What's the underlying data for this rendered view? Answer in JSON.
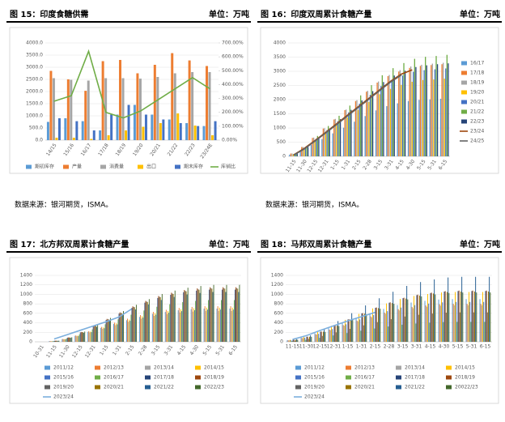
{
  "chart_data": [
    {
      "type": "bar",
      "title": "图 15：印度食糖供需",
      "unit": "单位：万吨",
      "source": "数据来源：银河期货，ISMA。",
      "categories": [
        "14/15",
        "15/16",
        "16/17",
        "17/18",
        "18/19",
        "19/20",
        "20/21",
        "21/22",
        "22/23",
        "23/24E"
      ],
      "ylim": [
        0,
        4000
      ],
      "yticks": [
        {
          "value": 0,
          "label": "0.0"
        },
        {
          "value": 500,
          "label": "500.0"
        },
        {
          "value": 1000,
          "label": "1000.0"
        },
        {
          "value": 1500,
          "label": "1500.0"
        },
        {
          "value": 2000,
          "label": "2000.0"
        },
        {
          "value": 2500,
          "label": "2500.0"
        },
        {
          "value": 3000,
          "label": "3000.0"
        },
        {
          "value": 3500,
          "label": "3500.0"
        },
        {
          "value": 4000,
          "label": "4000.0"
        }
      ],
      "y2lim": [
        0,
        700
      ],
      "y2ticks": [
        {
          "value": 0,
          "label": "0.00%"
        },
        {
          "value": 100,
          "label": "100.00%"
        },
        {
          "value": 200,
          "label": "200.00%"
        },
        {
          "value": 300,
          "label": "300.00%"
        },
        {
          "value": 400,
          "label": "400.00%"
        },
        {
          "value": 500,
          "label": "500.00%"
        },
        {
          "value": 600,
          "label": "600.00%"
        },
        {
          "value": 700,
          "label": "700.00%"
        }
      ],
      "series": [
        {
          "name": "期初库存",
          "color": "#5b9bd5",
          "values": [
            750,
            900,
            780,
            400,
            1050,
            1450,
            1050,
            850,
            700,
            580
          ]
        },
        {
          "name": "产量",
          "color": "#ed7d31",
          "values": [
            2850,
            2500,
            2030,
            3250,
            3300,
            2750,
            3100,
            3580,
            3280,
            3050
          ]
        },
        {
          "name": "消费量",
          "color": "#a5a5a5",
          "values": [
            2550,
            2480,
            2450,
            2550,
            2550,
            2530,
            2600,
            2750,
            2800,
            2800
          ]
        },
        {
          "name": "出口",
          "color": "#ffc000",
          "values": [
            100,
            100,
            50,
            200,
            400,
            550,
            700,
            1100,
            600,
            200
          ]
        },
        {
          "name": "期末库存",
          "color": "#4472c4",
          "values": [
            900,
            780,
            400,
            1050,
            1450,
            1050,
            850,
            700,
            580,
            780
          ]
        },
        {
          "name": "库销比",
          "color": "#70ad47",
          "type": "line",
          "axis": "y2",
          "values": [
            280,
            320,
            640,
            200,
            160,
            210,
            290,
            370,
            450,
            370
          ]
        }
      ]
    },
    {
      "type": "bar",
      "title": "图 16：印度双周累计食糖产量",
      "unit": "单位：万吨",
      "source": "数据来源：银河期货，ISMA。",
      "categories": [
        "11-15",
        "11-30",
        "12-15",
        "12-31",
        "1-15",
        "1-31",
        "2-15",
        "2-28",
        "3-15",
        "3-31",
        "4-15",
        "4-30",
        "5-15",
        "5-31",
        "6-15"
      ],
      "ylim": [
        0,
        4000
      ],
      "yticks": [
        0,
        500,
        1000,
        1500,
        2000,
        2500,
        3000,
        3500,
        4000
      ],
      "series": [
        {
          "name": "16/17",
          "color": "#5b9bd5",
          "values": [
            60,
            200,
            400,
            610,
            810,
            1010,
            1220,
            1420,
            1620,
            1770,
            1870,
            1950,
            1990,
            2010,
            2030
          ]
        },
        {
          "name": "17/18",
          "color": "#ed7d31",
          "values": [
            100,
            330,
            650,
            980,
            1300,
            1630,
            1950,
            2280,
            2600,
            2830,
            2990,
            3120,
            3190,
            3220,
            3250
          ]
        },
        {
          "name": "18/19",
          "color": "#a5a5a5",
          "values": [
            100,
            330,
            660,
            990,
            1320,
            1650,
            1980,
            2310,
            2640,
            2870,
            3040,
            3170,
            3230,
            3270,
            3300
          ]
        },
        {
          "name": "19/20",
          "color": "#ffc000",
          "values": [
            80,
            270,
            550,
            820,
            1100,
            1370,
            1640,
            1920,
            2190,
            2380,
            2520,
            2630,
            2690,
            2710,
            2740
          ]
        },
        {
          "name": "20/21",
          "color": "#4472c4",
          "values": [
            90,
            310,
            620,
            930,
            1240,
            1550,
            1860,
            2170,
            2480,
            2700,
            2850,
            2980,
            3040,
            3070,
            3100
          ]
        },
        {
          "name": "21/22",
          "color": "#70ad47",
          "values": [
            110,
            360,
            720,
            1070,
            1430,
            1790,
            2150,
            2510,
            2860,
            3110,
            3290,
            3440,
            3510,
            3540,
            3580
          ]
        },
        {
          "name": "22/23",
          "color": "#264478",
          "values": [
            100,
            330,
            660,
            980,
            1310,
            1640,
            1970,
            2300,
            2620,
            2850,
            3020,
            3150,
            3210,
            3250,
            3280
          ]
        },
        {
          "name": "23/24",
          "color": "#9e480e",
          "type": "line",
          "values": [
            50,
            280,
            560,
            850,
            1150,
            1450,
            1750,
            2050,
            2350,
            2650,
            2900,
            3050,
            null,
            null,
            null
          ]
        },
        {
          "name": "24/25",
          "color": "#636363",
          "type": "line",
          "values": [
            40,
            260,
            540,
            830,
            1120,
            1420,
            1720,
            2020,
            2320,
            2620,
            2870,
            null,
            null,
            null,
            null
          ]
        }
      ]
    },
    {
      "type": "bar",
      "title": "图 17：北方邦双周累计食糖产量",
      "unit": "单位：万吨",
      "categories": [
        "10-31",
        "11-15",
        "11-30",
        "12-15",
        "12-31",
        "1-15",
        "1-31",
        "2-15",
        "2-28",
        "3-15",
        "3-31",
        "4-15",
        "4-30",
        "5-15",
        "5-31",
        "6-15"
      ],
      "ylim": [
        0,
        1400
      ],
      "yticks": [
        0,
        200,
        400,
        600,
        800,
        1000,
        1200,
        1400
      ],
      "series": [
        {
          "name": "2011/12",
          "color": "#5b9bd5",
          "values": [
            0,
            14,
            56,
            126,
            210,
            294,
            378,
            455,
            525,
            588,
            630,
            665,
            686,
            700,
            700,
            700
          ]
        },
        {
          "name": "2012/13",
          "color": "#ed7d31",
          "values": [
            0,
            15,
            60,
            135,
            225,
            315,
            405,
            488,
            563,
            630,
            675,
            713,
            735,
            750,
            750,
            750
          ]
        },
        {
          "name": "2013/14",
          "color": "#a5a5a5",
          "values": [
            0,
            13,
            52,
            117,
            195,
            273,
            351,
            423,
            488,
            546,
            585,
            618,
            637,
            650,
            650,
            650
          ]
        },
        {
          "name": "2014/15",
          "color": "#ffc000",
          "values": [
            0,
            14,
            58,
            130,
            216,
            302,
            389,
            468,
            540,
            605,
            648,
            684,
            706,
            720,
            720,
            720
          ]
        },
        {
          "name": "2015/16",
          "color": "#4472c4",
          "values": [
            0,
            14,
            54,
            122,
            204,
            286,
            367,
            442,
            510,
            571,
            612,
            646,
            666,
            680,
            680,
            680
          ]
        },
        {
          "name": "2016/17",
          "color": "#70ad47",
          "values": [
            0,
            18,
            70,
            158,
            264,
            370,
            475,
            572,
            660,
            739,
            792,
            836,
            862,
            880,
            880,
            880
          ]
        },
        {
          "name": "2017/18",
          "color": "#264478",
          "values": [
            0,
            22,
            88,
            198,
            330,
            462,
            594,
            715,
            825,
            924,
            990,
            1045,
            1078,
            1100,
            1100,
            1100
          ]
        },
        {
          "name": "2018/19",
          "color": "#9e480e",
          "values": [
            0,
            23,
            92,
            207,
            345,
            483,
            621,
            748,
            863,
            966,
            1035,
            1093,
            1127,
            1150,
            1150,
            1150
          ]
        },
        {
          "name": "2019/20",
          "color": "#636363",
          "values": [
            0,
            23,
            90,
            203,
            339,
            475,
            610,
            735,
            848,
            949,
            1017,
            1074,
            1107,
            1130,
            1130,
            1130
          ]
        },
        {
          "name": "2020/21",
          "color": "#997300",
          "values": [
            0,
            22,
            90,
            202,
            336,
            470,
            605,
            728,
            840,
            941,
            1008,
            1064,
            1098,
            1120,
            1120,
            1120
          ]
        },
        {
          "name": "2021/22",
          "color": "#255e91",
          "values": [
            0,
            21,
            84,
            189,
            315,
            441,
            567,
            683,
            788,
            882,
            945,
            998,
            1029,
            1050,
            1050,
            1050
          ]
        },
        {
          "name": "2022/23",
          "color": "#43682b",
          "values": [
            0,
            24,
            96,
            216,
            360,
            504,
            648,
            780,
            900,
            1008,
            1080,
            1140,
            1176,
            1200,
            1200,
            1200
          ]
        },
        {
          "name": "2023/24",
          "color": "#7cafdd",
          "type": "line",
          "values": [
            null,
            60,
            150,
            240,
            330,
            420,
            520,
            690,
            null,
            null,
            null,
            null,
            null,
            null,
            null,
            null
          ]
        }
      ]
    },
    {
      "type": "bar",
      "title": "图 18：马邦双周累计食糖产量",
      "unit": "单位：万吨",
      "categories": [
        "11-15",
        "11-30",
        "12-15",
        "12-31",
        "1-15",
        "1-31",
        "2-15",
        "2-28",
        "3-15",
        "3-31",
        "4-15",
        "4-30",
        "5-15",
        "5-31",
        "6-15"
      ],
      "ylim": [
        0,
        1400
      ],
      "yticks": [
        0,
        200,
        400,
        600,
        800,
        1000,
        1200,
        1400
      ],
      "series": [
        {
          "name": "2011/12",
          "color": "#5b9bd5",
          "values": [
            36,
            90,
            180,
            288,
            396,
            504,
            603,
            693,
            774,
            828,
            864,
            891,
            900,
            900,
            900
          ]
        },
        {
          "name": "2012/13",
          "color": "#ed7d31",
          "values": [
            32,
            80,
            160,
            256,
            352,
            448,
            536,
            616,
            688,
            736,
            768,
            792,
            800,
            800,
            800
          ]
        },
        {
          "name": "2013/14",
          "color": "#a5a5a5",
          "values": [
            31,
            77,
            154,
            246,
            339,
            431,
            516,
            593,
            662,
            708,
            739,
            762,
            770,
            770,
            770
          ]
        },
        {
          "name": "2014/15",
          "color": "#ffc000",
          "values": [
            42,
            105,
            210,
            336,
            462,
            588,
            704,
            809,
            903,
            966,
            1008,
            1040,
            1050,
            1050,
            1050
          ]
        },
        {
          "name": "2015/16",
          "color": "#4472c4",
          "values": [
            34,
            84,
            168,
            269,
            370,
            470,
            563,
            647,
            722,
            773,
            806,
            832,
            840,
            840,
            840
          ]
        },
        {
          "name": "2016/17",
          "color": "#70ad47",
          "values": [
            17,
            42,
            84,
            134,
            185,
            235,
            281,
            323,
            361,
            386,
            403,
            416,
            420,
            420,
            420
          ]
        },
        {
          "name": "2017/18",
          "color": "#264478",
          "values": [
            43,
            107,
            214,
            342,
            471,
            599,
            717,
            824,
            920,
            984,
            1027,
            1059,
            1070,
            1070,
            1070
          ]
        },
        {
          "name": "2018/19",
          "color": "#9e480e",
          "values": [
            43,
            108,
            216,
            346,
            475,
            605,
            724,
            832,
            929,
            994,
            1037,
            1069,
            1080,
            1080,
            1080
          ]
        },
        {
          "name": "2019/20",
          "color": "#636363",
          "values": [
            25,
            62,
            124,
            198,
            273,
            347,
            415,
            477,
            533,
            570,
            595,
            614,
            620,
            620,
            620
          ]
        },
        {
          "name": "2020/21",
          "color": "#997300",
          "values": [
            42,
            106,
            212,
            339,
            466,
            594,
            710,
            816,
            912,
            975,
            1018,
            1049,
            1060,
            1060,
            1060
          ]
        },
        {
          "name": "2021/22",
          "color": "#255e91",
          "values": [
            55,
            137,
            274,
            438,
            603,
            767,
            918,
            1055,
            1178,
            1260,
            1315,
            1356,
            1370,
            1370,
            1370
          ]
        },
        {
          "name": "20022/23",
          "color": "#43682b",
          "values": [
            42,
            104,
            208,
            333,
            458,
            582,
            697,
            801,
            894,
            957,
            998,
            1030,
            1040,
            1040,
            1040
          ]
        },
        {
          "name": "2023/24",
          "color": "#7cafdd",
          "type": "line",
          "values": [
            50,
            130,
            240,
            340,
            440,
            530,
            620,
            null,
            null,
            null,
            null,
            null,
            null,
            null,
            null
          ]
        }
      ]
    }
  ]
}
